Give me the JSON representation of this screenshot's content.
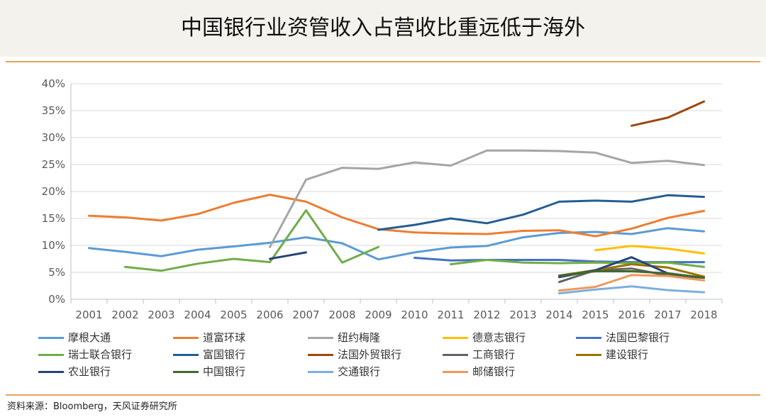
{
  "header": {
    "title": "中国银行业资管收入占营收比重远低于海外"
  },
  "source": "资料来源：Bloomberg，天风证券研究所",
  "chart_data": {
    "type": "line",
    "title": "中国银行业资管收入占营收比重远低于海外",
    "x": [
      2001,
      2002,
      2003,
      2004,
      2005,
      2006,
      2007,
      2008,
      2009,
      2010,
      2011,
      2012,
      2013,
      2014,
      2015,
      2016,
      2017,
      2018
    ],
    "y_ticks": [
      "0%",
      "5%",
      "10%",
      "15%",
      "20%",
      "25%",
      "30%",
      "35%",
      "40%"
    ],
    "ylim": [
      0,
      40
    ],
    "legend_position": "bottom",
    "series": [
      {
        "name": "摩根大通",
        "color": "#5b9bd5",
        "values": [
          9.5,
          8.8,
          8,
          9.2,
          9.8,
          10.5,
          11.5,
          10.4,
          7.4,
          8.7,
          9.6,
          9.9,
          11.5,
          12.3,
          12.5,
          12.1,
          13.2,
          12.6
        ]
      },
      {
        "name": "道富环球",
        "color": "#ed7d31",
        "values": [
          15.5,
          15.2,
          14.6,
          15.8,
          17.9,
          19.4,
          18.1,
          15.2,
          13,
          12.4,
          12.2,
          12.1,
          12.7,
          12.8,
          11.7,
          13.1,
          15.1,
          16.4
        ]
      },
      {
        "name": "纽约梅隆",
        "color": "#a5a5a5",
        "values": [
          null,
          null,
          null,
          null,
          null,
          9.7,
          22.2,
          24.4,
          24.2,
          25.4,
          24.8,
          27.6,
          27.6,
          27.5,
          27.2,
          25.3,
          25.7,
          24.9
        ]
      },
      {
        "name": "德意志银行",
        "color": "#ffc000",
        "values": [
          null,
          null,
          null,
          null,
          null,
          null,
          null,
          null,
          null,
          null,
          null,
          null,
          null,
          null,
          9.1,
          9.9,
          9.4,
          8.5
        ]
      },
      {
        "name": "法国巴黎银行",
        "color": "#4472c4",
        "values": [
          null,
          null,
          null,
          null,
          null,
          null,
          null,
          null,
          null,
          7.7,
          7.2,
          7.3,
          7.3,
          7.3,
          7,
          6.9,
          6.9,
          6.9
        ]
      },
      {
        "name": "瑞士联合银行",
        "color": "#70ad47",
        "values": [
          null,
          6,
          5.3,
          6.6,
          7.5,
          6.9,
          16.5,
          6.8,
          9.7,
          null,
          6.5,
          7.3,
          6.8,
          6.7,
          6.8,
          6.7,
          6.8,
          6
        ]
      },
      {
        "name": "富国银行",
        "color": "#255e91",
        "values": [
          null,
          null,
          null,
          null,
          null,
          null,
          null,
          null,
          12.9,
          13.8,
          15,
          14.1,
          15.7,
          18.1,
          18.3,
          18.1,
          19.3,
          19
        ]
      },
      {
        "name": "法国外贸银行",
        "color": "#9e480e",
        "values": [
          null,
          null,
          null,
          null,
          null,
          null,
          null,
          null,
          null,
          null,
          null,
          null,
          null,
          null,
          null,
          32.2,
          33.7,
          36.7
        ]
      },
      {
        "name": "工商银行",
        "color": "#636363",
        "values": [
          null,
          null,
          null,
          null,
          null,
          null,
          null,
          null,
          null,
          null,
          null,
          null,
          null,
          3.2,
          5.4,
          5.7,
          4.4,
          4
        ]
      },
      {
        "name": "建设银行",
        "color": "#997300",
        "values": [
          null,
          null,
          null,
          null,
          null,
          null,
          null,
          null,
          null,
          null,
          null,
          null,
          null,
          4.4,
          5.4,
          6.5,
          5.9,
          4.2
        ]
      },
      {
        "name": "农业银行",
        "color": "#264478",
        "values": [
          null,
          null,
          null,
          null,
          null,
          7.5,
          8.7,
          null,
          null,
          null,
          null,
          null,
          null,
          4.1,
          5.4,
          7.8,
          4.8,
          4
        ]
      },
      {
        "name": "中国银行",
        "color": "#43682b",
        "values": [
          null,
          null,
          null,
          null,
          null,
          null,
          null,
          null,
          null,
          null,
          null,
          null,
          null,
          4.4,
          5.2,
          5.2,
          4.8,
          4
        ]
      },
      {
        "name": "交通银行",
        "color": "#7cafdd",
        "values": [
          null,
          null,
          null,
          null,
          null,
          null,
          null,
          null,
          null,
          null,
          null,
          null,
          null,
          1.1,
          1.8,
          2.4,
          1.7,
          1.3
        ]
      },
      {
        "name": "邮储银行",
        "color": "#f1975a",
        "values": [
          null,
          null,
          null,
          null,
          null,
          null,
          null,
          null,
          null,
          null,
          null,
          null,
          null,
          1.6,
          2.3,
          4.5,
          4.3,
          3.5
        ]
      }
    ]
  }
}
